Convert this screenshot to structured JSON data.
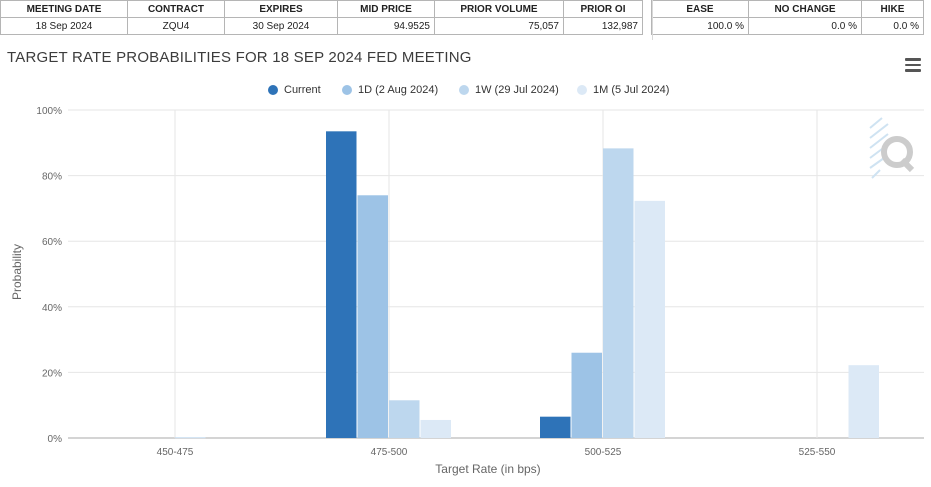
{
  "table": {
    "headers": [
      "MEETING DATE",
      "CONTRACT",
      "EXPIRES",
      "MID PRICE",
      "PRIOR VOLUME",
      "PRIOR OI"
    ],
    "row": [
      "18 Sep 2024",
      "ZQU4",
      "30 Sep 2024",
      "94.9525",
      "75,057",
      "132,987"
    ],
    "prob_headers": [
      "EASE",
      "NO CHANGE",
      "HIKE"
    ],
    "prob_row": [
      "100.0 %",
      "0.0 %",
      "0.0 %"
    ]
  },
  "colors": {
    "current": "#2e73b8",
    "d1": "#9dc3e6",
    "w1": "#bdd7ee",
    "m1": "#dce9f6"
  },
  "chart_data": {
    "type": "bar",
    "title": "TARGET RATE PROBABILITIES FOR 18 SEP 2024 FED MEETING",
    "xlabel": "Target Rate (in bps)",
    "ylabel": "Probability",
    "categories": [
      "450-475",
      "475-500",
      "500-525",
      "525-550"
    ],
    "ylim": [
      0,
      100
    ],
    "yticks": [
      "0%",
      "20%",
      "40%",
      "60%",
      "80%",
      "100%"
    ],
    "grid": true,
    "legend_position": "top-center",
    "series": [
      {
        "name": "Current",
        "values": [
          0,
          93.5,
          6.5,
          0
        ]
      },
      {
        "name": "1D (2 Aug 2024)",
        "values": [
          0,
          74,
          26,
          0
        ]
      },
      {
        "name": "1W (29 Jul 2024)",
        "values": [
          0.2,
          11.5,
          88.3,
          0
        ]
      },
      {
        "name": "1M (5 Jul 2024)",
        "values": [
          0,
          5.5,
          72.3,
          22.2
        ]
      }
    ]
  }
}
